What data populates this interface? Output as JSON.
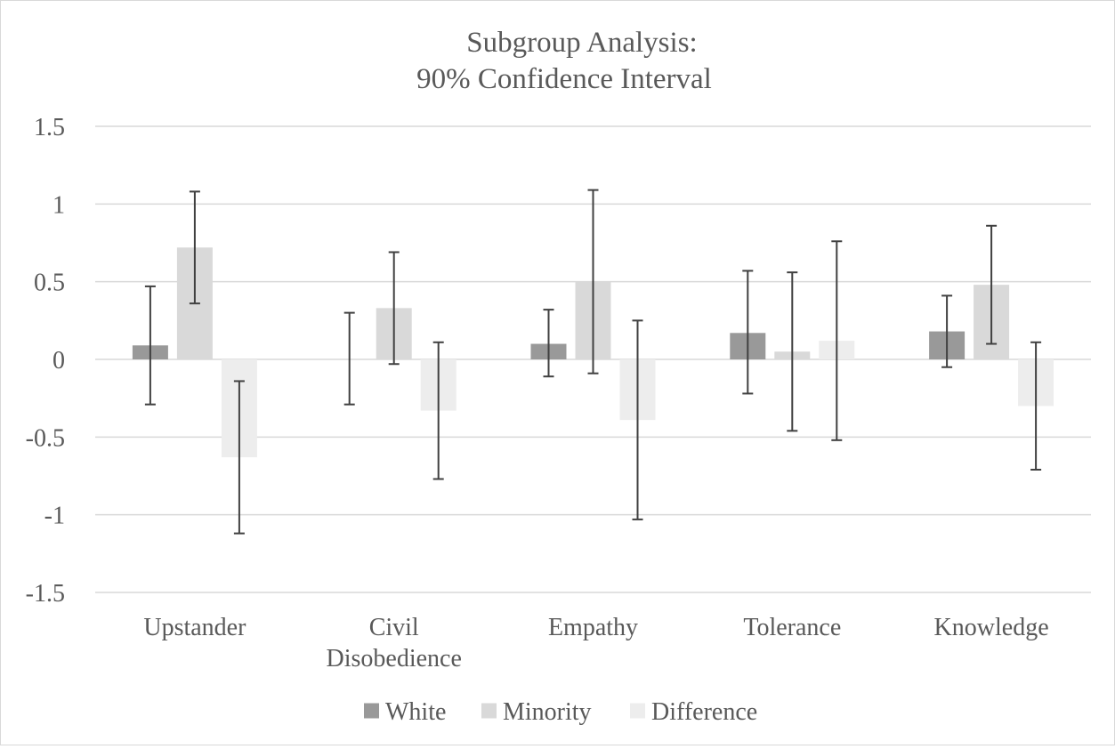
{
  "chart_data": {
    "type": "bar",
    "title": "Subgroup Analysis:",
    "subtitle": "90% Confidence Interval",
    "xlabel": "",
    "ylabel": "",
    "ylim": [
      -1.5,
      1.5
    ],
    "y_ticks": [
      1.5,
      1,
      0.5,
      0,
      -0.5,
      -1,
      -1.5
    ],
    "y_tick_labels": [
      "1.5",
      "1",
      "0.5",
      "0",
      "-0.5",
      "-1",
      "-1.5"
    ],
    "grid": true,
    "legend_position": "bottom",
    "categories": [
      [
        "Upstander"
      ],
      [
        "Civil",
        "Disobedience"
      ],
      [
        "Empathy"
      ],
      [
        "Tolerance"
      ],
      [
        "Knowledge"
      ]
    ],
    "series": [
      {
        "name": "White",
        "color": "#999999",
        "values": [
          0.09,
          0.0,
          0.1,
          0.17,
          0.18
        ],
        "error_low": [
          -0.29,
          -0.29,
          -0.11,
          -0.22,
          -0.05
        ],
        "error_high": [
          0.47,
          0.3,
          0.32,
          0.57,
          0.41
        ]
      },
      {
        "name": "Minority",
        "color": "#d9d9d9",
        "values": [
          0.72,
          0.33,
          0.5,
          0.05,
          0.48
        ],
        "error_low": [
          0.36,
          -0.03,
          -0.09,
          -0.46,
          0.1
        ],
        "error_high": [
          1.08,
          0.69,
          1.09,
          0.56,
          0.86
        ]
      },
      {
        "name": "Difference",
        "color": "#ededed",
        "values": [
          -0.63,
          -0.33,
          -0.39,
          0.12,
          -0.3
        ],
        "error_low": [
          -1.12,
          -0.77,
          -1.03,
          -0.52,
          -0.71
        ],
        "error_high": [
          -0.14,
          0.11,
          0.25,
          0.76,
          0.11
        ]
      }
    ]
  }
}
